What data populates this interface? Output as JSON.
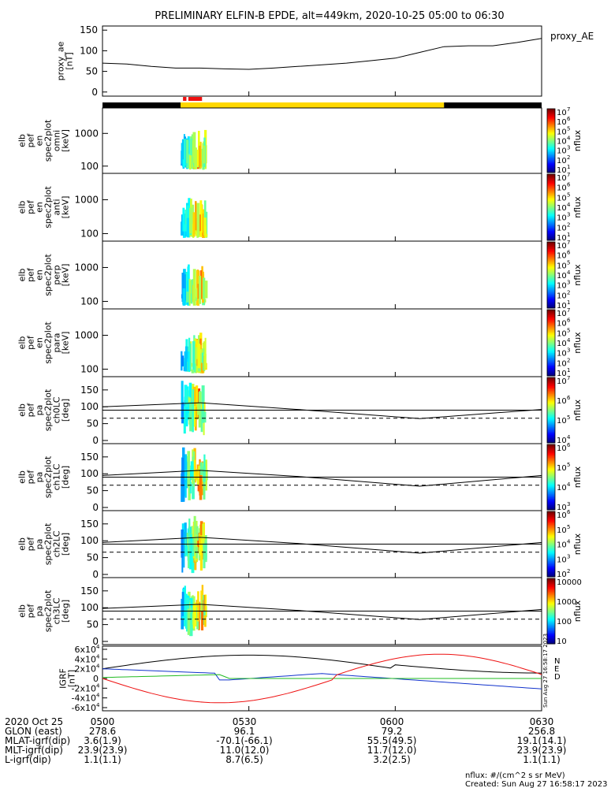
{
  "title": "PRELIMINARY ELFIN-B EPDE, alt=449km, 2020-10-25 05:00 to 06:30",
  "colors": {
    "black": "#000000",
    "yellow": "#ffd800",
    "red": "#ee1111",
    "blue": "#1133cc",
    "green": "#22bb22"
  },
  "chart_data": [
    {
      "type": "line",
      "name": "proxy_ae",
      "ylabel_lines": [
        "proxy_ae",
        "[nT]"
      ],
      "ylim": [
        -10,
        160
      ],
      "yticks": [
        "0",
        "50",
        "100",
        "150"
      ],
      "legend": "proxy_AE",
      "x": [
        "05:00",
        "05:05",
        "05:10",
        "05:15",
        "05:20",
        "05:25",
        "05:30",
        "05:35",
        "05:40",
        "05:45",
        "05:50",
        "05:55",
        "06:00",
        "06:05",
        "06:10",
        "06:15",
        "06:20",
        "06:25",
        "06:30"
      ],
      "values": [
        70,
        68,
        62,
        58,
        58,
        56,
        55,
        58,
        62,
        66,
        70,
        76,
        82,
        96,
        110,
        112,
        112,
        120,
        130
      ]
    },
    {
      "type": "bar",
      "name": "science zones",
      "segments": [
        {
          "start": "05:00",
          "end": "05:16",
          "color": "#000000"
        },
        {
          "start": "05:16",
          "end": "06:10",
          "color": "#ffd800"
        },
        {
          "start": "06:10",
          "end": "06:30",
          "color": "#000000"
        },
        {
          "start": "05:16.5",
          "end": "05:17.2",
          "color": "#ee1111"
        },
        {
          "start": "05:17.6",
          "end": "05:20.4",
          "color": "#ee1111"
        }
      ]
    },
    {
      "type": "heatmap",
      "ylabel_lines": [
        "elb",
        "pef",
        "en",
        "spec2plot",
        "omni",
        "[keV]"
      ],
      "yticks": [
        "100",
        "1000"
      ],
      "ylog": true,
      "ylim": [
        60,
        6000
      ],
      "cbar_ticks": [
        "10",
        "10",
        "10",
        "10",
        "10",
        "10",
        "10"
      ],
      "cbar_exp": [
        "1",
        "2",
        "3",
        "4",
        "5",
        "6",
        "7"
      ],
      "cbar_label": "nflux",
      "time_range": [
        "05:15",
        "05:20"
      ]
    },
    {
      "type": "heatmap",
      "ylabel_lines": [
        "elb",
        "pef",
        "en",
        "spec2plot",
        "anti",
        "[keV]"
      ],
      "yticks": [
        "100",
        "1000"
      ],
      "ylog": true,
      "ylim": [
        60,
        6000
      ],
      "cbar_ticks": [
        "10",
        "10",
        "10",
        "10",
        "10",
        "10",
        "10"
      ],
      "cbar_exp": [
        "1",
        "2",
        "3",
        "4",
        "5",
        "6",
        "7"
      ],
      "cbar_label": "nflux",
      "time_range": [
        "05:15",
        "05:20"
      ]
    },
    {
      "type": "heatmap",
      "ylabel_lines": [
        "elb",
        "pef",
        "en",
        "spec2plot",
        "perp",
        "[keV]"
      ],
      "yticks": [
        "100",
        "1000"
      ],
      "ylog": true,
      "ylim": [
        60,
        6000
      ],
      "cbar_ticks": [
        "10",
        "10",
        "10",
        "10",
        "10",
        "10",
        "10"
      ],
      "cbar_exp": [
        "1",
        "2",
        "3",
        "4",
        "5",
        "6",
        "7"
      ],
      "cbar_label": "nflux",
      "time_range": [
        "05:15",
        "05:20"
      ]
    },
    {
      "type": "heatmap",
      "ylabel_lines": [
        "elb",
        "pef",
        "en",
        "spec2plot",
        "para",
        "[keV]"
      ],
      "yticks": [
        "100",
        "1000"
      ],
      "ylog": true,
      "ylim": [
        60,
        6000
      ],
      "cbar_ticks": [
        "10",
        "10",
        "10",
        "10",
        "10",
        "10",
        "10"
      ],
      "cbar_exp": [
        "1",
        "2",
        "3",
        "4",
        "5",
        "6",
        "7"
      ],
      "cbar_label": "nflux",
      "time_range": [
        "05:15",
        "05:20"
      ]
    },
    {
      "type": "heatmap",
      "ylabel_lines": [
        "elb",
        "pef",
        "pa",
        "spec2plot",
        "ch0LC",
        "[deg]"
      ],
      "yticks": [
        "0",
        "50",
        "100",
        "150"
      ],
      "ylim": [
        0,
        180
      ],
      "cbar_ticks": [
        "10",
        "10",
        "10",
        "10"
      ],
      "cbar_exp": [
        "4",
        "5",
        "6",
        "7"
      ],
      "cbar_label": "nflux",
      "time_range": [
        "05:15",
        "05:20"
      ],
      "lc_solid": [
        100,
        112,
        92,
        65,
        92
      ],
      "lc_dashed": 66
    },
    {
      "type": "heatmap",
      "ylabel_lines": [
        "elb",
        "pef",
        "pa",
        "spec2plot",
        "ch1LC",
        "[deg]"
      ],
      "yticks": [
        "0",
        "50",
        "100",
        "150"
      ],
      "ylim": [
        0,
        180
      ],
      "cbar_ticks": [
        "10",
        "10",
        "10",
        "10"
      ],
      "cbar_exp": [
        "3",
        "4",
        "5",
        "6"
      ],
      "cbar_label": "nflux",
      "time_range": [
        "05:15",
        "05:20"
      ],
      "lc_solid": [
        95,
        110,
        92,
        63,
        95
      ],
      "lc_dashed": 66
    },
    {
      "type": "heatmap",
      "ylabel_lines": [
        "elb",
        "pef",
        "pa",
        "spec2plot",
        "ch2LC",
        "[deg]"
      ],
      "yticks": [
        "0",
        "50",
        "100",
        "150"
      ],
      "ylim": [
        0,
        180
      ],
      "cbar_ticks": [
        "10",
        "10",
        "10",
        "10",
        "10"
      ],
      "cbar_exp": [
        "2",
        "3",
        "4",
        "5",
        "6"
      ],
      "cbar_label": "nflux",
      "time_range": [
        "05:15",
        "05:20"
      ],
      "lc_solid": [
        95,
        110,
        92,
        63,
        95
      ],
      "lc_dashed": 66
    },
    {
      "type": "heatmap",
      "ylabel_lines": [
        "elb",
        "pef",
        "pa",
        "spec2plot",
        "ch3LC",
        "[deg]"
      ],
      "yticks": [
        "0",
        "50",
        "100",
        "150"
      ],
      "ylim": [
        0,
        180
      ],
      "cbar_ticks": [
        "10",
        "100",
        "1000",
        "10000"
      ],
      "cbar_exp": [
        "",
        "",
        "",
        ""
      ],
      "cbar_label": "nflux",
      "time_range": [
        "05:15",
        "05:20"
      ],
      "lc_solid": [
        98,
        110,
        92,
        65,
        95
      ],
      "lc_dashed": 66
    },
    {
      "type": "line",
      "name": "IGRF",
      "ylabel_lines": [
        "IGRF",
        "[nT]"
      ],
      "ylim": [
        -60000,
        60000
      ],
      "yticks": [
        "6x10",
        "4x10",
        "2x10",
        "0",
        "-2x10",
        "-4x10",
        "-6x10"
      ],
      "ytick_exp": [
        "4",
        "4",
        "4",
        "",
        "4",
        "4",
        "4"
      ],
      "series": [
        {
          "name": "N",
          "color": "#1133cc"
        },
        {
          "name": "E",
          "color": "#22bb22"
        },
        {
          "name": "D",
          "color": "#ee1111"
        }
      ]
    }
  ],
  "x_axis": {
    "row_labels": [
      "2020 Oct 25",
      "GLON (east)",
      "MLAT-igrf(dip)",
      "MLT-igrf(dip)",
      "L-igrf(dip)"
    ],
    "columns": [
      [
        "0500",
        "278.6",
        "3.6(1.9)",
        "23.9(23.9)",
        "1.1(1.1)"
      ],
      [
        "0530",
        "96.1",
        "-70.1(-66.1)",
        "11.0(12.0)",
        "8.7(6.5)"
      ],
      [
        "0600",
        "79.2",
        "55.5(49.5)",
        "11.7(12.0)",
        "3.2(2.5)"
      ],
      [
        "0630",
        "256.8",
        "19.1(14.1)",
        "23.9(23.9)",
        "1.1(1.1)"
      ]
    ]
  },
  "footer": {
    "units": "nflux: #/(cm^2 s sr MeV)",
    "created": "Created: Sun Aug 27 16:58:17 2023",
    "side_stamp": "Sun Aug 27 16:58:17 2023"
  }
}
